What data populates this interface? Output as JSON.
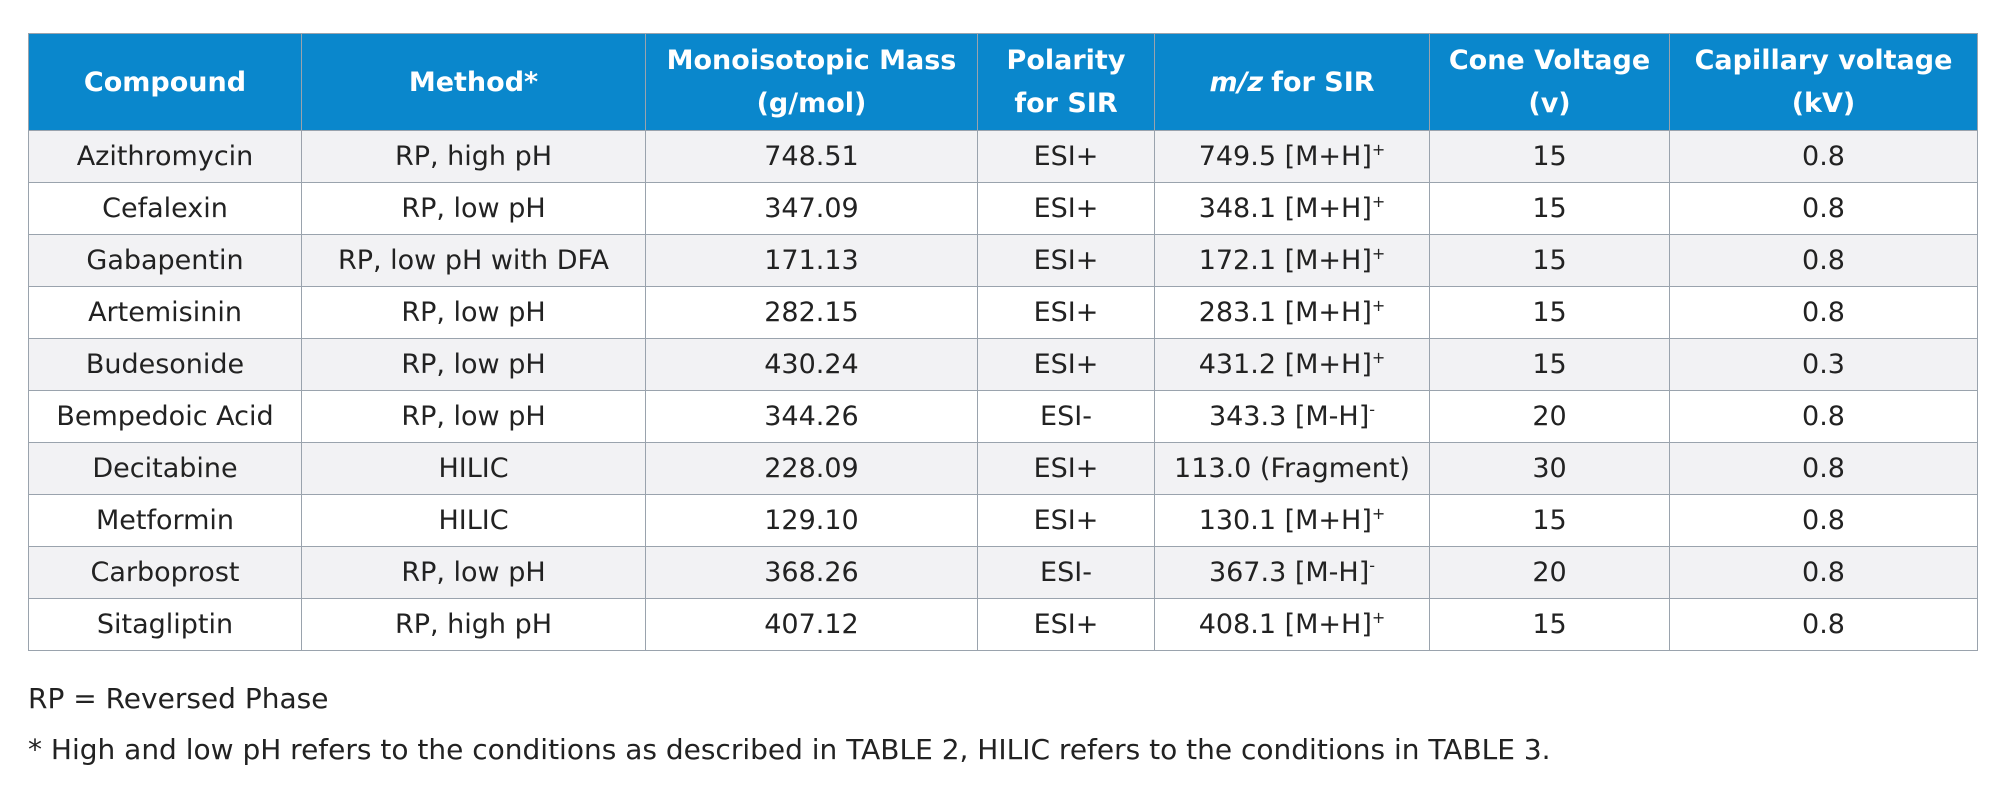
{
  "table": {
    "headers": [
      {
        "lines": [
          "Compound"
        ]
      },
      {
        "lines": [
          "Method*"
        ]
      },
      {
        "lines": [
          "Monoisotopic Mass",
          "(g/mol)"
        ]
      },
      {
        "lines": [
          "Polarity",
          "for SIR"
        ]
      },
      {
        "italic": "m/z",
        "lines": [
          "for SIR"
        ]
      },
      {
        "lines": [
          "Cone Voltage",
          "(v)"
        ]
      },
      {
        "lines": [
          "Capillary voltage",
          "(kV)"
        ]
      }
    ],
    "rows": [
      [
        "Azithromycin",
        "RP, high pH",
        "748.51",
        "ESI+",
        {
          "text": "749.5 [M+H]",
          "sup": "+"
        },
        "15",
        "0.8"
      ],
      [
        "Cefalexin",
        "RP, low pH",
        "347.09",
        "ESI+",
        {
          "text": "348.1 [M+H]",
          "sup": "+"
        },
        "15",
        "0.8"
      ],
      [
        "Gabapentin",
        "RP, low pH with DFA",
        "171.13",
        "ESI+",
        {
          "text": "172.1 [M+H]",
          "sup": "+"
        },
        "15",
        "0.8"
      ],
      [
        "Artemisinin",
        "RP, low pH",
        "282.15",
        "ESI+",
        {
          "text": "283.1 [M+H]",
          "sup": "+"
        },
        "15",
        "0.8"
      ],
      [
        "Budesonide",
        "RP, low pH",
        "430.24",
        "ESI+",
        {
          "text": "431.2 [M+H]",
          "sup": "+"
        },
        "15",
        "0.3"
      ],
      [
        "Bempedoic Acid",
        "RP, low pH",
        "344.26",
        "ESI-",
        {
          "text": "343.3 [M-H]",
          "sup": "-"
        },
        "20",
        "0.8"
      ],
      [
        "Decitabine",
        "HILIC",
        "228.09",
        "ESI+",
        "113.0 (Fragment)",
        "30",
        "0.8"
      ],
      [
        "Metformin",
        "HILIC",
        "129.10",
        "ESI+",
        {
          "text": "130.1 [M+H]",
          "sup": "+"
        },
        "15",
        "0.8"
      ],
      [
        "Carboprost",
        "RP, low pH",
        "368.26",
        "ESI-",
        {
          "text": "367.3 [M-H]",
          "sup": "-"
        },
        "20",
        "0.8"
      ],
      [
        "Sitagliptin",
        "RP, high pH",
        "407.12",
        "ESI+",
        {
          "text": "408.1 [M+H]",
          "sup": "+"
        },
        "15",
        "0.8"
      ]
    ]
  },
  "notes": [
    "RP = Reversed Phase",
    "* High and low pH refers to the conditions as described in TABLE 2, HILIC refers to the conditions in TABLE 3."
  ]
}
